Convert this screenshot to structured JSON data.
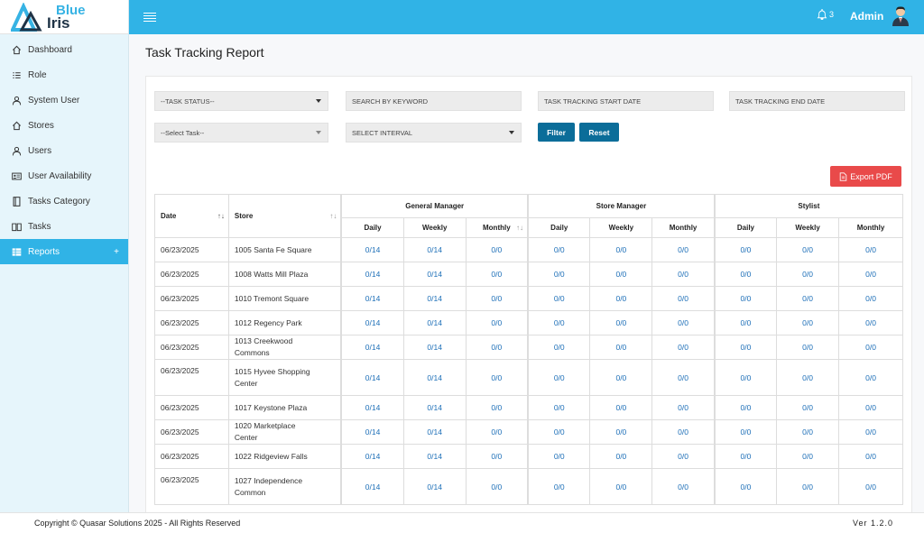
{
  "brand": {
    "line1": "Blue",
    "line2": "Iris"
  },
  "colors": {
    "primary": "#30b3e6",
    "button": "#0b6d99",
    "export": "#e94a4a"
  },
  "sidebar": {
    "items": [
      {
        "label": "Dashboard",
        "icon": "home-icon"
      },
      {
        "label": "Role",
        "icon": "list-icon"
      },
      {
        "label": "System User",
        "icon": "user-icon"
      },
      {
        "label": "Stores",
        "icon": "home-icon"
      },
      {
        "label": "Users",
        "icon": "user-icon"
      },
      {
        "label": "User Availability",
        "icon": "id-card-icon"
      },
      {
        "label": "Tasks Category",
        "icon": "book-icon"
      },
      {
        "label": "Tasks",
        "icon": "book-open-icon"
      },
      {
        "label": "Reports",
        "icon": "table-icon",
        "expand": "+"
      }
    ]
  },
  "header": {
    "notifications": "3",
    "user": "Admin"
  },
  "page": {
    "title": "Task Tracking Report"
  },
  "filters": {
    "task_status": "--TASK STATUS--",
    "keyword": "SEARCH BY KEYWORD",
    "start_date": "TASK TRACKING START DATE",
    "end_date": "TASK TRACKING END DATE",
    "task": "--Select Task--",
    "interval": "SELECT INTERVAL",
    "filter_label": "Filter",
    "reset_label": "Reset",
    "export_label": "Export PDF"
  },
  "table": {
    "date_header": "Date",
    "store_header": "Store",
    "groups": [
      "General Manager",
      "Store Manager",
      "Stylist"
    ],
    "sub": [
      "Daily",
      "Weekly",
      "Monthly"
    ],
    "rows": [
      {
        "date": "06/23/2025",
        "store": "1005 Santa Fe Square",
        "gm": [
          "0/14",
          "0/14",
          "0/0"
        ],
        "sm": [
          "0/0",
          "0/0",
          "0/0"
        ],
        "st": [
          "0/0",
          "0/0",
          "0/0"
        ]
      },
      {
        "date": "06/23/2025",
        "store": "1008 Watts Mill Plaza",
        "gm": [
          "0/14",
          "0/14",
          "0/0"
        ],
        "sm": [
          "0/0",
          "0/0",
          "0/0"
        ],
        "st": [
          "0/0",
          "0/0",
          "0/0"
        ]
      },
      {
        "date": "06/23/2025",
        "store": "1010 Tremont Square",
        "gm": [
          "0/14",
          "0/14",
          "0/0"
        ],
        "sm": [
          "0/0",
          "0/0",
          "0/0"
        ],
        "st": [
          "0/0",
          "0/0",
          "0/0"
        ]
      },
      {
        "date": "06/23/2025",
        "store": "1012 Regency Park",
        "gm": [
          "0/14",
          "0/14",
          "0/0"
        ],
        "sm": [
          "0/0",
          "0/0",
          "0/0"
        ],
        "st": [
          "0/0",
          "0/0",
          "0/0"
        ]
      },
      {
        "date": "06/23/2025",
        "store": "1013 Creekwood Commons",
        "gm": [
          "0/14",
          "0/14",
          "0/0"
        ],
        "sm": [
          "0/0",
          "0/0",
          "0/0"
        ],
        "st": [
          "0/0",
          "0/0",
          "0/0"
        ]
      },
      {
        "date": "06/23/2025",
        "store": "1015 Hyvee Shopping Center",
        "gm": [
          "0/14",
          "0/14",
          "0/0"
        ],
        "sm": [
          "0/0",
          "0/0",
          "0/0"
        ],
        "st": [
          "0/0",
          "0/0",
          "0/0"
        ]
      },
      {
        "date": "06/23/2025",
        "store": "1017 Keystone Plaza",
        "gm": [
          "0/14",
          "0/14",
          "0/0"
        ],
        "sm": [
          "0/0",
          "0/0",
          "0/0"
        ],
        "st": [
          "0/0",
          "0/0",
          "0/0"
        ]
      },
      {
        "date": "06/23/2025",
        "store": "1020 Marketplace Center",
        "gm": [
          "0/14",
          "0/14",
          "0/0"
        ],
        "sm": [
          "0/0",
          "0/0",
          "0/0"
        ],
        "st": [
          "0/0",
          "0/0",
          "0/0"
        ]
      },
      {
        "date": "06/23/2025",
        "store": "1022 Ridgeview Falls",
        "gm": [
          "0/14",
          "0/14",
          "0/0"
        ],
        "sm": [
          "0/0",
          "0/0",
          "0/0"
        ],
        "st": [
          "0/0",
          "0/0",
          "0/0"
        ]
      },
      {
        "date": "06/23/2025",
        "store": "1027 Independence Common",
        "gm": [
          "0/14",
          "0/14",
          "0/0"
        ],
        "sm": [
          "0/0",
          "0/0",
          "0/0"
        ],
        "st": [
          "0/0",
          "0/0",
          "0/0"
        ]
      }
    ]
  },
  "footer": {
    "copyright": "Copyright © Quasar Solutions 2025 - All Rights Reserved",
    "version": "Ver 1.2.0"
  }
}
